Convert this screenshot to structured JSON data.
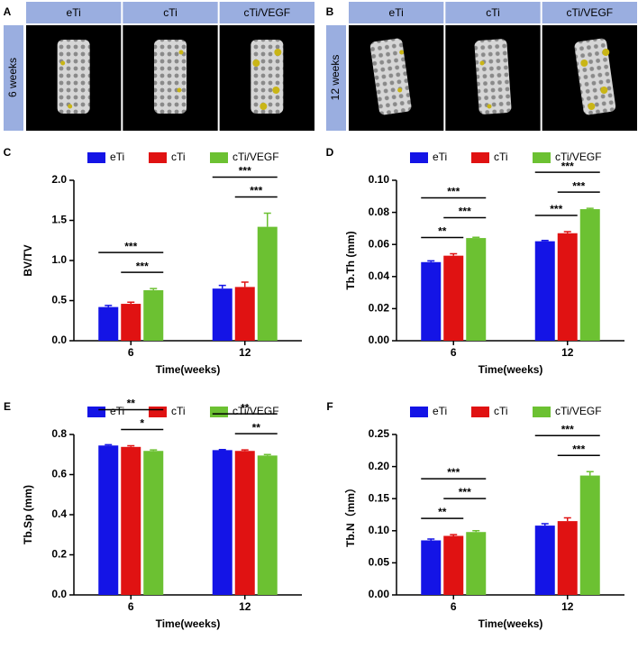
{
  "panels": [
    {
      "label": "A",
      "columns": [
        "eTi",
        "cTi",
        "cTi/VEGF"
      ],
      "row_label": "6 weeks"
    },
    {
      "label": "B",
      "columns": [
        "eTi",
        "cTi",
        "cTi/VEGF"
      ],
      "row_label": "12 weeks"
    }
  ],
  "chart_data": [
    {
      "type": "bar",
      "label": "C",
      "y_label": "BV/TV",
      "x_label": "Time(weeks)",
      "categories": [
        "6",
        "12"
      ],
      "ylim": [
        0,
        2
      ],
      "yticks": [
        {
          "value": 0,
          "label": "0.0"
        },
        0.5,
        {
          "value": 1,
          "label": "1.0"
        },
        1.5,
        {
          "value": 2,
          "label": "2.0"
        }
      ],
      "series": [
        {
          "name": "eTi",
          "color": "#1414e6",
          "values": [
            0.42,
            0.65
          ],
          "errors": [
            0.02,
            0.04
          ]
        },
        {
          "name": "cTi",
          "color": "#e01212",
          "values": [
            0.46,
            0.67
          ],
          "errors": [
            0.02,
            0.06
          ]
        },
        {
          "name": "cTi/VEGF",
          "color": "#6cc132",
          "values": [
            0.63,
            1.42
          ],
          "errors": [
            0.02,
            0.17
          ]
        }
      ],
      "annotations": [
        {
          "text": "***",
          "category": "6",
          "between": [
            "cTi",
            "cTi/VEGF"
          ]
        },
        {
          "text": "***",
          "category": "6",
          "between": [
            "eTi",
            "cTi/VEGF"
          ]
        },
        {
          "text": "***",
          "category": "12",
          "between": [
            "cTi",
            "cTi/VEGF"
          ]
        },
        {
          "text": "***",
          "category": "12",
          "between": [
            "eTi",
            "cTi/VEGF"
          ]
        }
      ]
    },
    {
      "type": "bar",
      "label": "D",
      "y_label": "Tb.Th (mm)",
      "x_label": "Time(weeks)",
      "categories": [
        "6",
        "12"
      ],
      "ylim": [
        0,
        0.1
      ],
      "yticks": [
        {
          "value": 0,
          "label": "0.00"
        },
        0.02,
        0.04,
        0.06,
        0.08,
        {
          "value": 0.1,
          "label": "0.10"
        }
      ],
      "series": [
        {
          "name": "eTi",
          "color": "#1414e6",
          "values": [
            0.049,
            0.062
          ],
          "errors": [
            0.0008,
            0.0005
          ]
        },
        {
          "name": "cTi",
          "color": "#e01212",
          "values": [
            0.053,
            0.067
          ],
          "errors": [
            0.0012,
            0.001
          ]
        },
        {
          "name": "cTi/VEGF",
          "color": "#6cc132",
          "values": [
            0.064,
            0.082
          ],
          "errors": [
            0.0005,
            0.0005
          ]
        }
      ],
      "annotations": [
        {
          "text": "**",
          "category": "6",
          "between": [
            "eTi",
            "cTi"
          ]
        },
        {
          "text": "***",
          "category": "6",
          "between": [
            "cTi",
            "cTi/VEGF"
          ]
        },
        {
          "text": "***",
          "category": "6",
          "between": [
            "eTi",
            "cTi/VEGF"
          ]
        },
        {
          "text": "***",
          "category": "12",
          "between": [
            "eTi",
            "cTi"
          ]
        },
        {
          "text": "***",
          "category": "12",
          "between": [
            "cTi",
            "cTi/VEGF"
          ]
        },
        {
          "text": "***",
          "category": "12",
          "between": [
            "eTi",
            "cTi/VEGF"
          ]
        }
      ]
    },
    {
      "type": "bar",
      "label": "E",
      "y_label": "Tb.Sp (mm)",
      "x_label": "Time(weeks)",
      "categories": [
        "6",
        "12"
      ],
      "ylim": [
        0,
        0.8
      ],
      "yticks": [
        {
          "value": 0,
          "label": "0.0"
        },
        0.2,
        0.4,
        0.6,
        0.8
      ],
      "series": [
        {
          "name": "eTi",
          "color": "#1414e6",
          "values": [
            0.745,
            0.722
          ],
          "errors": [
            0.004,
            0.003
          ]
        },
        {
          "name": "cTi",
          "color": "#e01212",
          "values": [
            0.738,
            0.718
          ],
          "errors": [
            0.006,
            0.005
          ]
        },
        {
          "name": "cTi/VEGF",
          "color": "#6cc132",
          "values": [
            0.718,
            0.695
          ],
          "errors": [
            0.005,
            0.005
          ]
        }
      ],
      "annotations": [
        {
          "text": "*",
          "category": "6",
          "between": [
            "cTi",
            "cTi/VEGF"
          ]
        },
        {
          "text": "**",
          "category": "6",
          "between": [
            "eTi",
            "cTi/VEGF"
          ]
        },
        {
          "text": "**",
          "category": "12",
          "between": [
            "cTi",
            "cTi/VEGF"
          ]
        },
        {
          "text": "**",
          "category": "12",
          "between": [
            "eTi",
            "cTi/VEGF"
          ]
        }
      ]
    },
    {
      "type": "bar",
      "label": "F",
      "y_label": "Tb.N（mm）",
      "x_label": "Time(weeks)",
      "categories": [
        "6",
        "12"
      ],
      "ylim": [
        0,
        0.25
      ],
      "yticks": [
        {
          "value": 0,
          "label": "0.00"
        },
        0.05,
        {
          "value": 0.1,
          "label": "0.10"
        },
        0.15,
        {
          "value": 0.2,
          "label": "0.20"
        },
        0.25
      ],
      "series": [
        {
          "name": "eTi",
          "color": "#1414e6",
          "values": [
            0.085,
            0.108
          ],
          "errors": [
            0.002,
            0.003
          ]
        },
        {
          "name": "cTi",
          "color": "#e01212",
          "values": [
            0.092,
            0.115
          ],
          "errors": [
            0.002,
            0.005
          ]
        },
        {
          "name": "cTi/VEGF",
          "color": "#6cc132",
          "values": [
            0.098,
            0.186
          ],
          "errors": [
            0.002,
            0.006
          ]
        }
      ],
      "annotations": [
        {
          "text": "**",
          "category": "6",
          "between": [
            "eTi",
            "cTi"
          ]
        },
        {
          "text": "***",
          "category": "6",
          "between": [
            "cTi",
            "cTi/VEGF"
          ]
        },
        {
          "text": "***",
          "category": "6",
          "between": [
            "eTi",
            "cTi/VEGF"
          ]
        },
        {
          "text": "***",
          "category": "12",
          "between": [
            "cTi",
            "cTi/VEGF"
          ]
        },
        {
          "text": "***",
          "category": "12",
          "between": [
            "eTi",
            "cTi/VEGF"
          ]
        }
      ]
    }
  ]
}
